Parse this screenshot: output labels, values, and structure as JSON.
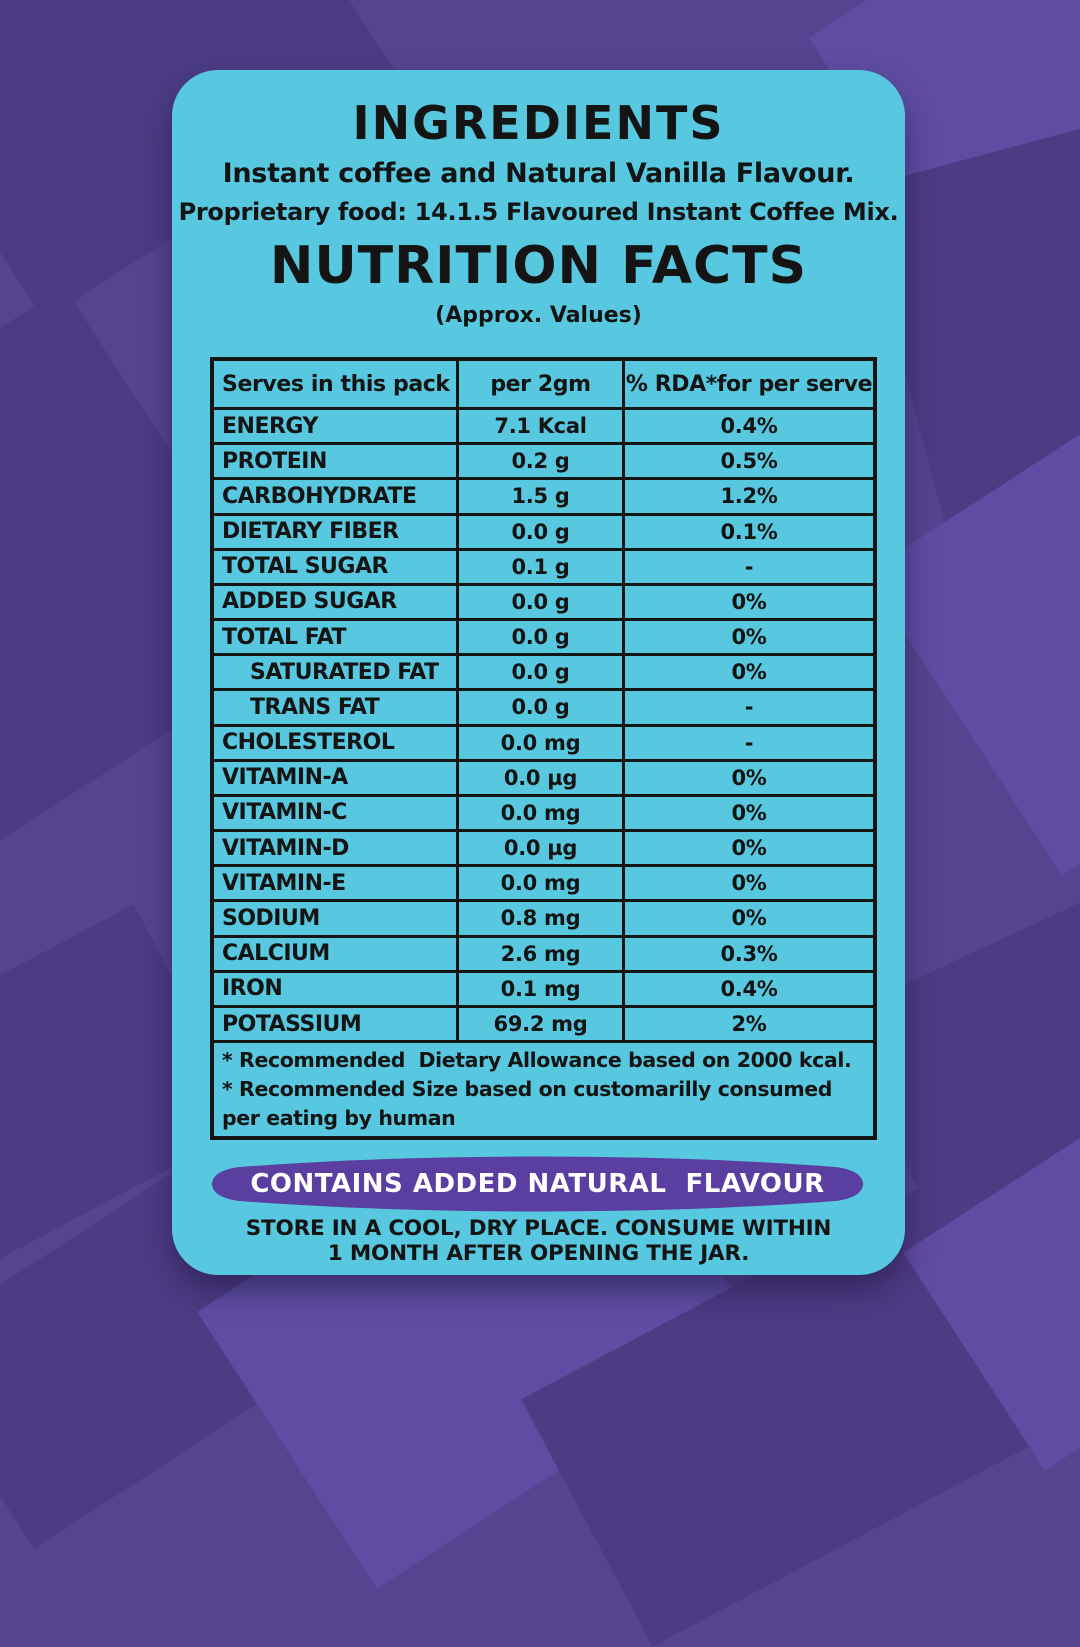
{
  "colors": {
    "bg": "#55448f",
    "bg-dark": "#4b3c84",
    "bg-light": "#5e4da3",
    "card": "#57c8df",
    "banner": "#5a3fa0",
    "ink": "#141414",
    "banner-text": "#ffffff"
  },
  "card": {
    "ingredients_title": "INGREDIENTS",
    "ingredients_line1": "Instant coffee and Natural Vanilla Flavour.",
    "ingredients_line2": "Proprietary food: 14.1.5 Flavoured Instant Coffee Mix.",
    "nutrition_title": "NUTRITION FACTS",
    "nutrition_subtitle": "(Approx. Values)"
  },
  "table": {
    "headers": [
      "Serves in this pack",
      "per 2gm",
      "% RDA*for per serve"
    ],
    "rows": [
      {
        "label": "ENERGY",
        "value": "7.1 Kcal",
        "rda": "0.4%",
        "indent": false
      },
      {
        "label": "PROTEIN",
        "value": "0.2 g",
        "rda": "0.5%",
        "indent": false
      },
      {
        "label": "CARBOHYDRATE",
        "value": "1.5 g",
        "rda": "1.2%",
        "indent": false
      },
      {
        "label": "DIETARY FIBER",
        "value": "0.0 g",
        "rda": "0.1%",
        "indent": false
      },
      {
        "label": "TOTAL SUGAR",
        "value": "0.1 g",
        "rda": "-",
        "indent": false
      },
      {
        "label": "ADDED SUGAR",
        "value": "0.0 g",
        "rda": "0%",
        "indent": false
      },
      {
        "label": "TOTAL FAT",
        "value": "0.0 g",
        "rda": "0%",
        "indent": false
      },
      {
        "label": "SATURATED FAT",
        "value": "0.0 g",
        "rda": "0%",
        "indent": true
      },
      {
        "label": "TRANS FAT",
        "value": "0.0 g",
        "rda": "-",
        "indent": true
      },
      {
        "label": "CHOLESTEROL",
        "value": "0.0 mg",
        "rda": "-",
        "indent": false
      },
      {
        "label": "VITAMIN-A",
        "value": "0.0 µg",
        "rda": "0%",
        "indent": false
      },
      {
        "label": "VITAMIN-C",
        "value": "0.0 mg",
        "rda": "0%",
        "indent": false
      },
      {
        "label": "VITAMIN-D",
        "value": "0.0 µg",
        "rda": "0%",
        "indent": false
      },
      {
        "label": "VITAMIN-E",
        "value": "0.0 mg",
        "rda": "0%",
        "indent": false
      },
      {
        "label": "SODIUM",
        "value": "0.8 mg",
        "rda": "0%",
        "indent": false
      },
      {
        "label": "CALCIUM",
        "value": "2.6 mg",
        "rda": "0.3%",
        "indent": false
      },
      {
        "label": "IRON",
        "value": "0.1 mg",
        "rda": "0.4%",
        "indent": false
      },
      {
        "label": "POTASSIUM",
        "value": "69.2 mg",
        "rda": "2%",
        "indent": false
      }
    ],
    "footnotes": [
      "* Recommended  Dietary Allowance based on 2000 kcal.",
      "* Recommended Size based on customarilly consumed per eating by human"
    ]
  },
  "banner": {
    "label": "CONTAINS ADDED NATURAL  FLAVOUR"
  },
  "storage": {
    "line1": "STORE IN A COOL, DRY PLACE. CONSUME WITHIN",
    "line2": "1 MONTH AFTER OPENING THE JAR."
  }
}
